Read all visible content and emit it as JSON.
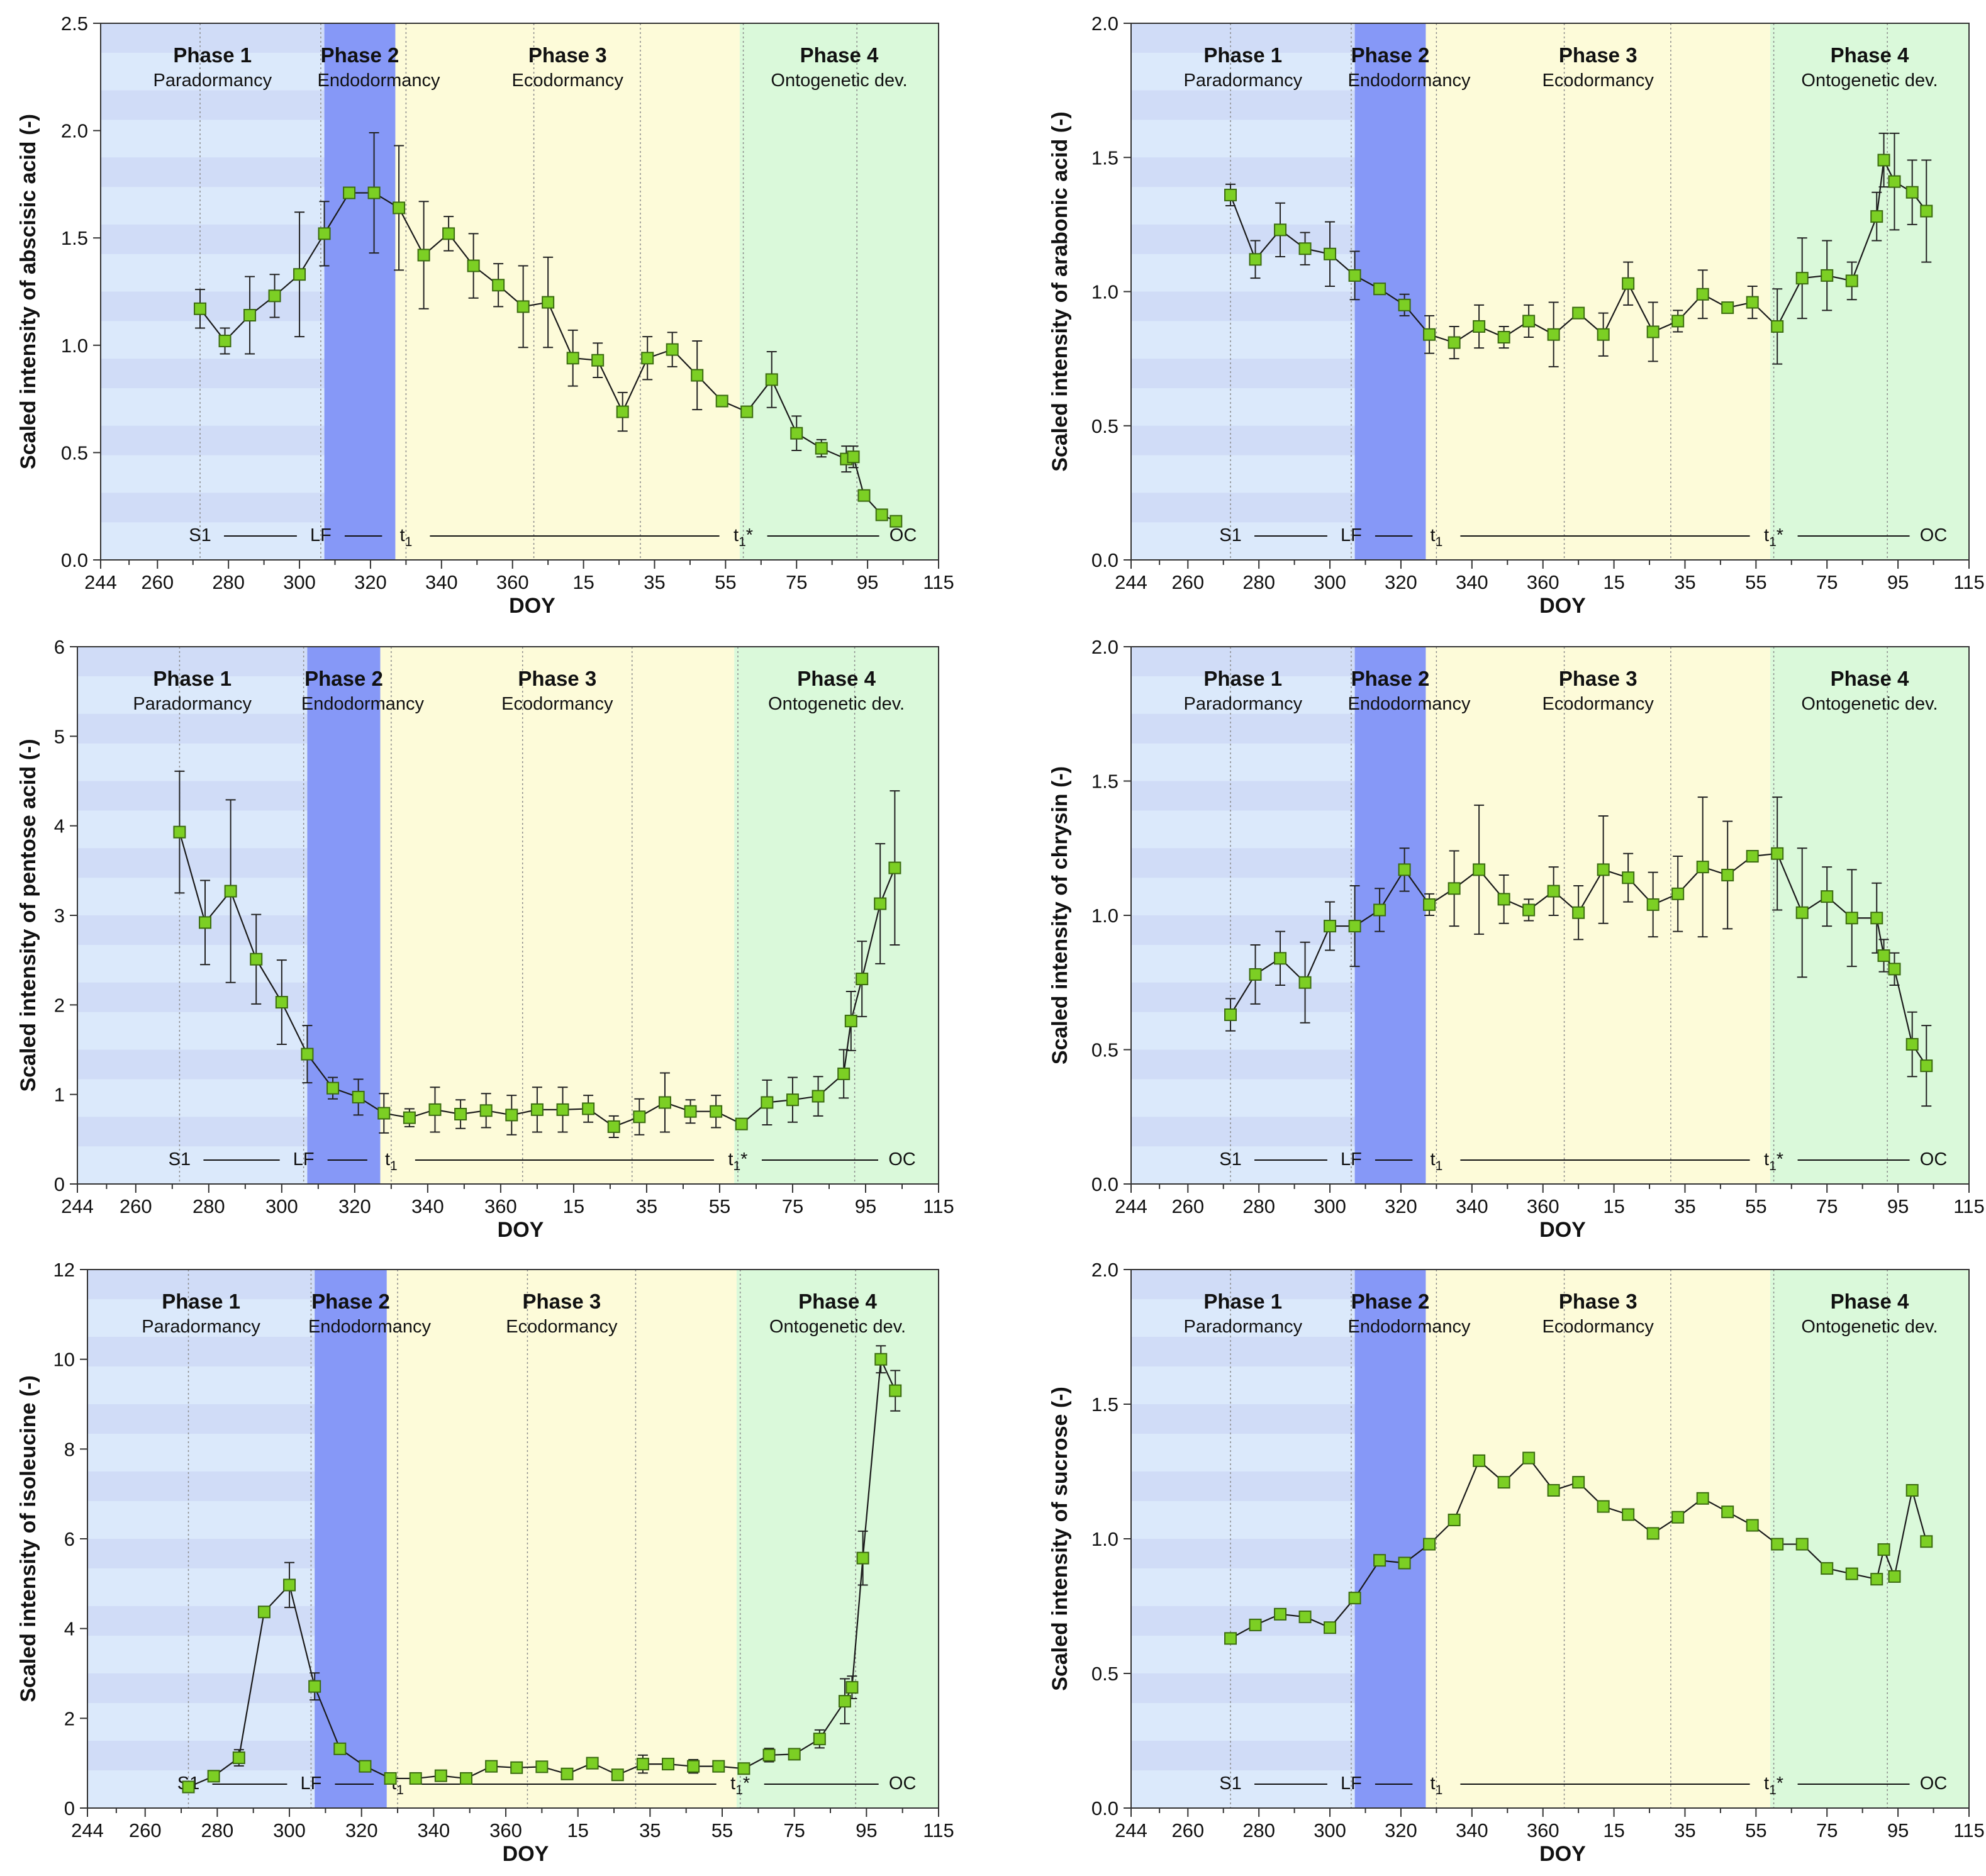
{
  "x_axis": {
    "label": "DOY",
    "ticks": [
      "244",
      "260",
      "280",
      "300",
      "320",
      "340",
      "360",
      "15",
      "35",
      "55",
      "75",
      "95",
      "115"
    ],
    "tick_positions": [
      244,
      260,
      280,
      300,
      320,
      340,
      360,
      380,
      400,
      420,
      440,
      460,
      480
    ],
    "domain": [
      244,
      480
    ]
  },
  "phases": [
    {
      "name": "Phase 1",
      "subtitle": "Paradormancy",
      "start": 244,
      "end": 307,
      "color": "#dbe9fb",
      "band_color": "#ccd7f6"
    },
    {
      "name": "Phase 2",
      "subtitle": "Endodormancy",
      "start": 307,
      "end": 327,
      "color": "#8698f7"
    },
    {
      "name": "Phase 3",
      "subtitle": "Ecodormancy",
      "start": 327,
      "end": 424,
      "color": "#fdfbd9"
    },
    {
      "name": "Phase 4",
      "subtitle": "Ontogenetic dev.",
      "start": 424,
      "end": 482,
      "color": "#daf9da"
    }
  ],
  "vlines": [
    272,
    306,
    330,
    366,
    396,
    425,
    457
  ],
  "markers": [
    {
      "label": "S1",
      "pos": 272
    },
    {
      "label": "LF",
      "pos": 306
    },
    {
      "label": "t",
      "sub": "1",
      "pos": 330
    },
    {
      "label": "t",
      "sub": "1",
      "suffix": "*",
      "pos": 425
    },
    {
      "label": "OC",
      "pos": 470
    }
  ],
  "colors": {
    "marker_fill": "#7ccf24",
    "marker_edge": "#3b6b10",
    "line": "#1a1a1a"
  },
  "chart_data": [
    {
      "type": "line",
      "ylabel": "Scaled intensity of abscisic acid (-)",
      "ylim": [
        0,
        2.5
      ],
      "yticks": [
        "0.0",
        "0.5",
        "1.0",
        "1.5",
        "2.0",
        "2.5"
      ],
      "ytick_values": [
        0,
        0.5,
        1.0,
        1.5,
        2.0,
        2.5
      ],
      "x": [
        272,
        279,
        286,
        293,
        300,
        307,
        314,
        321,
        328,
        335,
        342,
        349,
        356,
        363,
        370,
        377,
        384,
        391,
        398,
        405,
        412,
        419,
        426,
        433,
        440,
        447,
        454,
        456,
        459,
        464,
        468
      ],
      "values": [
        1.17,
        1.02,
        1.14,
        1.23,
        1.33,
        1.52,
        1.71,
        1.71,
        1.64,
        1.42,
        1.52,
        1.37,
        1.28,
        1.18,
        1.2,
        0.94,
        0.93,
        0.69,
        0.94,
        0.98,
        0.86,
        0.74,
        0.69,
        0.84,
        0.59,
        0.52,
        0.47,
        0.48,
        0.3,
        0.21,
        0.18
      ],
      "errors": [
        0.09,
        0.06,
        0.18,
        0.1,
        0.29,
        0.15,
        0.0,
        0.28,
        0.29,
        0.25,
        0.08,
        0.15,
        0.1,
        0.19,
        0.21,
        0.13,
        0.08,
        0.09,
        0.1,
        0.08,
        0.16,
        0.0,
        0.0,
        0.13,
        0.08,
        0.04,
        0.06,
        0.05,
        0.0,
        0.0,
        0.0
      ]
    },
    {
      "type": "line",
      "ylabel": "Scaled intensity of arabonic acid (-)",
      "ylim": [
        0,
        2.0
      ],
      "yticks": [
        "0.0",
        "0.5",
        "1.0",
        "1.5",
        "2.0"
      ],
      "ytick_values": [
        0,
        0.5,
        1.0,
        1.5,
        2.0
      ],
      "x": [
        272,
        279,
        286,
        293,
        300,
        307,
        314,
        321,
        328,
        335,
        342,
        349,
        356,
        363,
        370,
        377,
        384,
        391,
        398,
        405,
        412,
        419,
        426,
        433,
        440,
        447,
        454,
        456,
        459,
        464,
        468
      ],
      "values": [
        1.36,
        1.12,
        1.23,
        1.16,
        1.14,
        1.06,
        1.01,
        0.95,
        0.84,
        0.81,
        0.87,
        0.83,
        0.89,
        0.84,
        0.92,
        0.84,
        1.03,
        0.85,
        0.89,
        0.99,
        0.94,
        0.96,
        0.87,
        1.05,
        1.06,
        1.04,
        1.28,
        1.49,
        1.41,
        1.37,
        1.3
      ],
      "errors": [
        0.04,
        0.07,
        0.1,
        0.06,
        0.12,
        0.09,
        0.0,
        0.04,
        0.07,
        0.06,
        0.08,
        0.04,
        0.06,
        0.12,
        0.0,
        0.08,
        0.08,
        0.11,
        0.04,
        0.09,
        0.02,
        0.06,
        0.14,
        0.15,
        0.13,
        0.07,
        0.09,
        0.1,
        0.18,
        0.12,
        0.19
      ]
    },
    {
      "type": "line",
      "ylabel": "Scaled intensity of pentose acid (-)",
      "ylim": [
        0,
        6
      ],
      "yticks": [
        "0",
        "1",
        "2",
        "3",
        "4",
        "5",
        "6"
      ],
      "ytick_values": [
        0,
        1,
        2,
        3,
        4,
        5,
        6
      ],
      "x": [
        272,
        279,
        286,
        293,
        300,
        307,
        314,
        321,
        328,
        335,
        342,
        349,
        356,
        363,
        370,
        377,
        384,
        391,
        398,
        405,
        412,
        419,
        426,
        433,
        440,
        447,
        454,
        456,
        459,
        464,
        468
      ],
      "values": [
        3.93,
        2.92,
        3.27,
        2.51,
        2.03,
        1.45,
        1.07,
        0.97,
        0.79,
        0.74,
        0.83,
        0.78,
        0.82,
        0.77,
        0.83,
        0.83,
        0.84,
        0.64,
        0.75,
        0.91,
        0.81,
        0.81,
        0.67,
        0.91,
        0.94,
        0.98,
        1.23,
        1.82,
        2.29,
        3.13,
        3.53
      ],
      "errors": [
        0.68,
        0.47,
        1.02,
        0.5,
        0.47,
        0.32,
        0.12,
        0.2,
        0.22,
        0.1,
        0.25,
        0.16,
        0.19,
        0.22,
        0.25,
        0.25,
        0.15,
        0.12,
        0.2,
        0.33,
        0.13,
        0.18,
        0.06,
        0.25,
        0.25,
        0.22,
        0.27,
        0.33,
        0.42,
        0.67,
        0.86
      ]
    },
    {
      "type": "line",
      "ylabel": "Scaled intensity of chrysin (-)",
      "ylim": [
        0,
        2.0
      ],
      "yticks": [
        "0.0",
        "0.5",
        "1.0",
        "1.5",
        "2.0"
      ],
      "ytick_values": [
        0,
        0.5,
        1.0,
        1.5,
        2.0
      ],
      "x": [
        272,
        279,
        286,
        293,
        300,
        307,
        314,
        321,
        328,
        335,
        342,
        349,
        356,
        363,
        370,
        377,
        384,
        391,
        398,
        405,
        412,
        419,
        426,
        433,
        440,
        447,
        454,
        456,
        459,
        464,
        468
      ],
      "values": [
        0.63,
        0.78,
        0.84,
        0.75,
        0.96,
        0.96,
        1.02,
        1.17,
        1.04,
        1.1,
        1.17,
        1.06,
        1.02,
        1.09,
        1.01,
        1.17,
        1.14,
        1.04,
        1.08,
        1.18,
        1.15,
        1.22,
        1.23,
        1.01,
        1.07,
        0.99,
        0.99,
        0.85,
        0.8,
        0.52,
        0.44
      ],
      "errors": [
        0.06,
        0.11,
        0.1,
        0.15,
        0.09,
        0.15,
        0.08,
        0.08,
        0.04,
        0.14,
        0.24,
        0.09,
        0.04,
        0.09,
        0.1,
        0.2,
        0.09,
        0.12,
        0.14,
        0.26,
        0.2,
        0.0,
        0.21,
        0.24,
        0.11,
        0.18,
        0.13,
        0.06,
        0.06,
        0.12,
        0.15
      ]
    },
    {
      "type": "line",
      "ylabel": "Scaled intensity of isoleucine (-)",
      "ylim": [
        0,
        12
      ],
      "yticks": [
        "0",
        "2",
        "4",
        "6",
        "8",
        "10",
        "12"
      ],
      "ytick_values": [
        0,
        2,
        4,
        6,
        8,
        10,
        12
      ],
      "x": [
        272,
        279,
        286,
        293,
        300,
        307,
        314,
        321,
        328,
        335,
        342,
        349,
        356,
        363,
        370,
        377,
        384,
        391,
        398,
        405,
        412,
        419,
        426,
        433,
        440,
        447,
        454,
        456,
        459,
        464,
        468
      ],
      "values": [
        0.47,
        0.71,
        1.12,
        4.37,
        4.97,
        2.71,
        1.32,
        0.93,
        0.66,
        0.66,
        0.72,
        0.66,
        0.93,
        0.9,
        0.92,
        0.76,
        1.0,
        0.74,
        0.98,
        0.98,
        0.93,
        0.93,
        0.88,
        1.18,
        1.2,
        1.54,
        2.38,
        2.69,
        5.57,
        10.0,
        9.3
      ],
      "errors": [
        0.0,
        0.0,
        0.18,
        0.0,
        0.5,
        0.3,
        0.0,
        0.0,
        0.1,
        0.0,
        0.0,
        0.0,
        0.0,
        0.08,
        0.12,
        0.0,
        0.0,
        0.0,
        0.2,
        0.0,
        0.15,
        0.0,
        0.0,
        0.15,
        0.0,
        0.2,
        0.5,
        0.25,
        0.6,
        0.3,
        0.45
      ]
    },
    {
      "type": "line",
      "ylabel": "Scaled intensity of sucrose (-)",
      "ylim": [
        0,
        2.0
      ],
      "yticks": [
        "0.0",
        "0.5",
        "1.0",
        "1.5",
        "2.0"
      ],
      "ytick_values": [
        0,
        0.5,
        1.0,
        1.5,
        2.0
      ],
      "x": [
        272,
        279,
        286,
        293,
        300,
        307,
        314,
        321,
        328,
        335,
        342,
        349,
        356,
        363,
        370,
        377,
        384,
        391,
        398,
        405,
        412,
        419,
        426,
        433,
        440,
        447,
        454,
        456,
        459,
        464,
        468
      ],
      "values": [
        0.63,
        0.68,
        0.72,
        0.71,
        0.67,
        0.78,
        0.92,
        0.91,
        0.98,
        1.07,
        1.29,
        1.21,
        1.3,
        1.18,
        1.21,
        1.12,
        1.09,
        1.02,
        1.08,
        1.15,
        1.1,
        1.05,
        0.98,
        0.98,
        0.89,
        0.87,
        0.85,
        0.96,
        0.86,
        1.18,
        0.99
      ]
    }
  ]
}
